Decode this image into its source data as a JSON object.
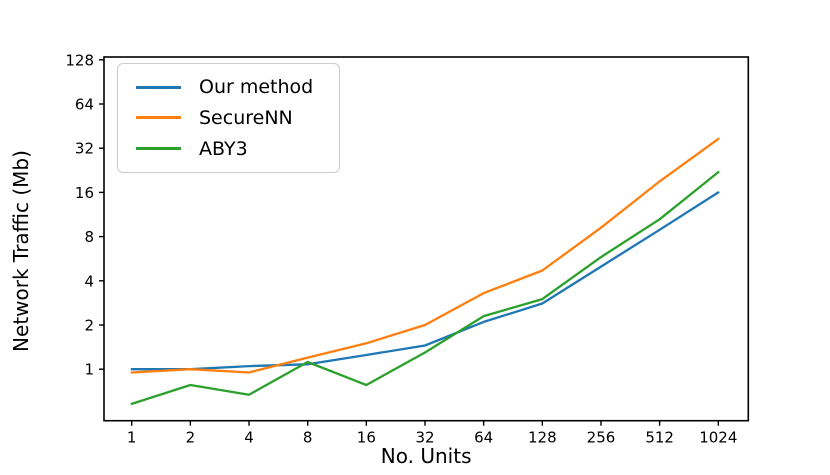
{
  "chart_data": {
    "type": "line",
    "title": "",
    "xlabel": "No. Units",
    "ylabel": "Network Traffic (Mb)",
    "x_scale": "log2",
    "y_scale": "log2",
    "x_ticks": [
      1,
      2,
      4,
      8,
      16,
      32,
      64,
      128,
      256,
      512,
      1024
    ],
    "y_ticks": [
      1,
      2,
      4,
      8,
      16,
      32,
      64,
      128
    ],
    "xlim": [
      0.72,
      1450
    ],
    "ylim": [
      0.44,
      134
    ],
    "grid": false,
    "legend_position": "upper-left",
    "x": [
      1,
      2,
      4,
      8,
      16,
      32,
      64,
      128,
      256,
      512,
      1024
    ],
    "series": [
      {
        "name": "Our method",
        "color": "#1f77b4",
        "values": [
          1.0,
          1.0,
          1.05,
          1.08,
          1.25,
          1.45,
          2.1,
          2.8,
          5.0,
          8.9,
          16.0
        ]
      },
      {
        "name": "SecureNN",
        "color": "#ff7f0e",
        "values": [
          0.95,
          1.0,
          0.95,
          1.2,
          1.5,
          2.0,
          3.3,
          4.7,
          9.2,
          19.0,
          37.0
        ]
      },
      {
        "name": "ABY3",
        "color": "#2ca02c",
        "values": [
          0.58,
          0.78,
          0.67,
          1.12,
          0.78,
          1.3,
          2.3,
          3.0,
          5.8,
          10.5,
          22.0
        ]
      }
    ]
  },
  "legend": {
    "entries": [
      {
        "label": "Our method",
        "color": "#1f77b4"
      },
      {
        "label": "SecureNN",
        "color": "#ff7f0e"
      },
      {
        "label": "ABY3",
        "color": "#2ca02c"
      }
    ]
  },
  "axes": {
    "xlabel": "No. Units",
    "ylabel": "Network Traffic (Mb)"
  }
}
